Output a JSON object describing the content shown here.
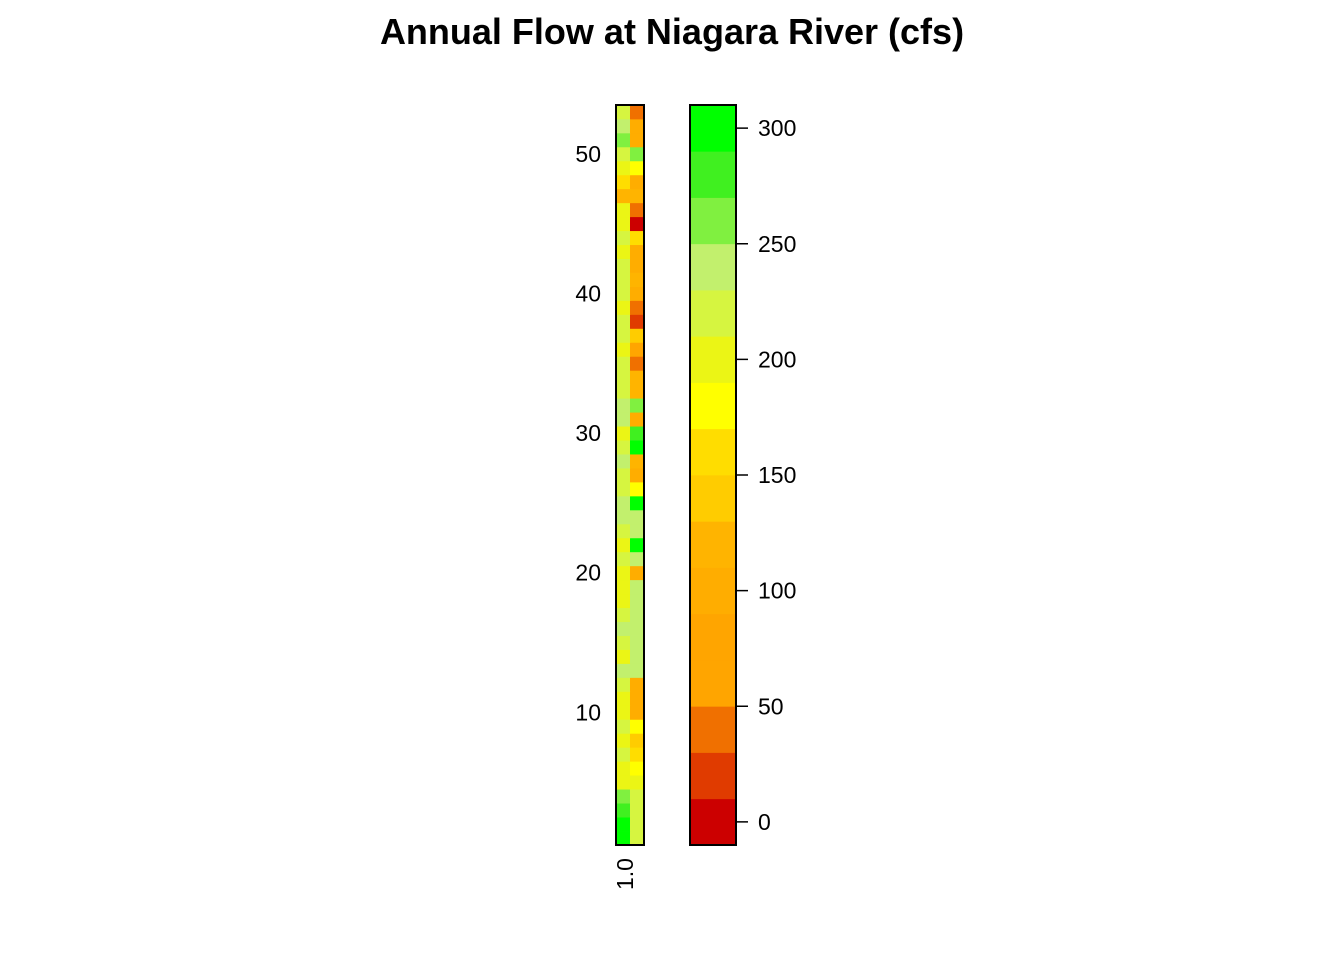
{
  "chart_data": {
    "type": "heatmap",
    "title": "Annual Flow at Niagara River (cfs)",
    "xlabel": "",
    "ylabel": "",
    "x_ticks": [
      "1.0"
    ],
    "y_ticks": [
      10,
      20,
      30,
      40,
      50
    ],
    "ylim": [
      0.5,
      53.5
    ],
    "columns": 2,
    "rows": 53,
    "values": [
      [
        290,
        225
      ],
      [
        290,
        215
      ],
      [
        270,
        215
      ],
      [
        250,
        215
      ],
      [
        200,
        195
      ],
      [
        200,
        185
      ],
      [
        215,
        150
      ],
      [
        200,
        145
      ],
      [
        215,
        185
      ],
      [
        195,
        100
      ],
      [
        195,
        105
      ],
      [
        215,
        100
      ],
      [
        230,
        230
      ],
      [
        200,
        235
      ],
      [
        215,
        230
      ],
      [
        230,
        240
      ],
      [
        215,
        245
      ],
      [
        200,
        240
      ],
      [
        200,
        240
      ],
      [
        200,
        100
      ],
      [
        210,
        240
      ],
      [
        200,
        290
      ],
      [
        210,
        245
      ],
      [
        230,
        240
      ],
      [
        240,
        290
      ],
      [
        215,
        185
      ],
      [
        215,
        100
      ],
      [
        230,
        110
      ],
      [
        215,
        290
      ],
      [
        200,
        270
      ],
      [
        235,
        100
      ],
      [
        240,
        250
      ],
      [
        215,
        120
      ],
      [
        220,
        110
      ],
      [
        210,
        35
      ],
      [
        195,
        80
      ],
      [
        210,
        130
      ],
      [
        220,
        20
      ],
      [
        200,
        45
      ],
      [
        210,
        90
      ],
      [
        225,
        110
      ],
      [
        210,
        95
      ],
      [
        200,
        100
      ],
      [
        210,
        155
      ],
      [
        200,
        5
      ],
      [
        190,
        35
      ],
      [
        110,
        110
      ],
      [
        165,
        95
      ],
      [
        200,
        185
      ],
      [
        220,
        255
      ],
      [
        250,
        100
      ],
      [
        230,
        90
      ],
      [
        215,
        40
      ]
    ],
    "legend": {
      "ticks": [
        0,
        50,
        100,
        150,
        200,
        250,
        300
      ],
      "breaks": [
        -10,
        10,
        30,
        50,
        70,
        90,
        110,
        130,
        150,
        170,
        190,
        210,
        230,
        250,
        270,
        290,
        310
      ],
      "colors": [
        "#CC0000",
        "#E03B00",
        "#F07000",
        "#FFA500",
        "#FFA500",
        "#FFAD00",
        "#FFB400",
        "#FFCC00",
        "#FFDD00",
        "#FFFF00",
        "#EBF515",
        "#D6F540",
        "#C2F06D",
        "#80F040",
        "#40F020",
        "#00FF00"
      ]
    }
  }
}
